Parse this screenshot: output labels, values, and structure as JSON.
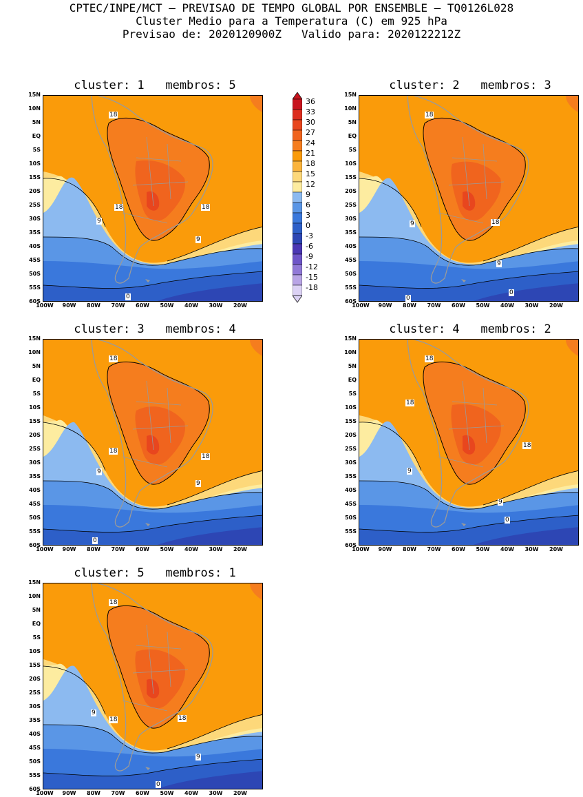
{
  "header": {
    "line1": "CPTEC/INPE/MCT – PREVISAO DE TEMPO GLOBAL POR ENSEMBLE – TQ0126L028",
    "line2": "Cluster Medio para a Temperatura (C) em 925 hPa",
    "line3": "Previsao de: 2020120900Z   Valido para: 2020122212Z"
  },
  "axes": {
    "lat_ticks": [
      "15N",
      "10N",
      "5N",
      "EQ",
      "5S",
      "10S",
      "15S",
      "20S",
      "25S",
      "30S",
      "35S",
      "40S",
      "45S",
      "50S",
      "55S",
      "60S"
    ],
    "lon_ticks": [
      "100W",
      "90W",
      "80W",
      "70W",
      "60W",
      "50W",
      "40W",
      "30W",
      "20W"
    ]
  },
  "colorbar": {
    "labels": [
      "36",
      "33",
      "30",
      "27",
      "24",
      "21",
      "18",
      "15",
      "12",
      "9",
      "6",
      "3",
      "0",
      "-3",
      "-6",
      "-9",
      "-12",
      "-15",
      "-18"
    ],
    "colors": [
      "#c8141e",
      "#dc2d1e",
      "#e8461e",
      "#f0641e",
      "#f57d1e",
      "#fa9b0a",
      "#fbb43c",
      "#fdd87a",
      "#fdeca0",
      "#8cbaf0",
      "#5a96e6",
      "#3a78dc",
      "#2d5fc8",
      "#2d46b4",
      "#4b37b4",
      "#6e55c8",
      "#9179d7",
      "#b9a5e6",
      "#dcd2f5"
    ]
  },
  "panels": [
    {
      "title": "cluster: 1   membros: 5",
      "labels": [
        "18",
        "18",
        "18",
        "9",
        "9",
        "0"
      ]
    },
    {
      "title": "cluster: 2   membros: 3",
      "labels": [
        "18",
        "18",
        "9",
        "9",
        "0",
        "0"
      ]
    },
    {
      "title": "cluster: 3   membros: 4",
      "labels": [
        "18",
        "18",
        "18",
        "9",
        "9",
        "0"
      ]
    },
    {
      "title": "cluster: 4   membros: 2",
      "labels": [
        "18",
        "18",
        "18",
        "9",
        "9",
        "0"
      ]
    },
    {
      "title": "cluster: 5   membros: 1",
      "labels": [
        "18",
        "18",
        "18",
        "9",
        "9",
        "0"
      ]
    }
  ]
}
